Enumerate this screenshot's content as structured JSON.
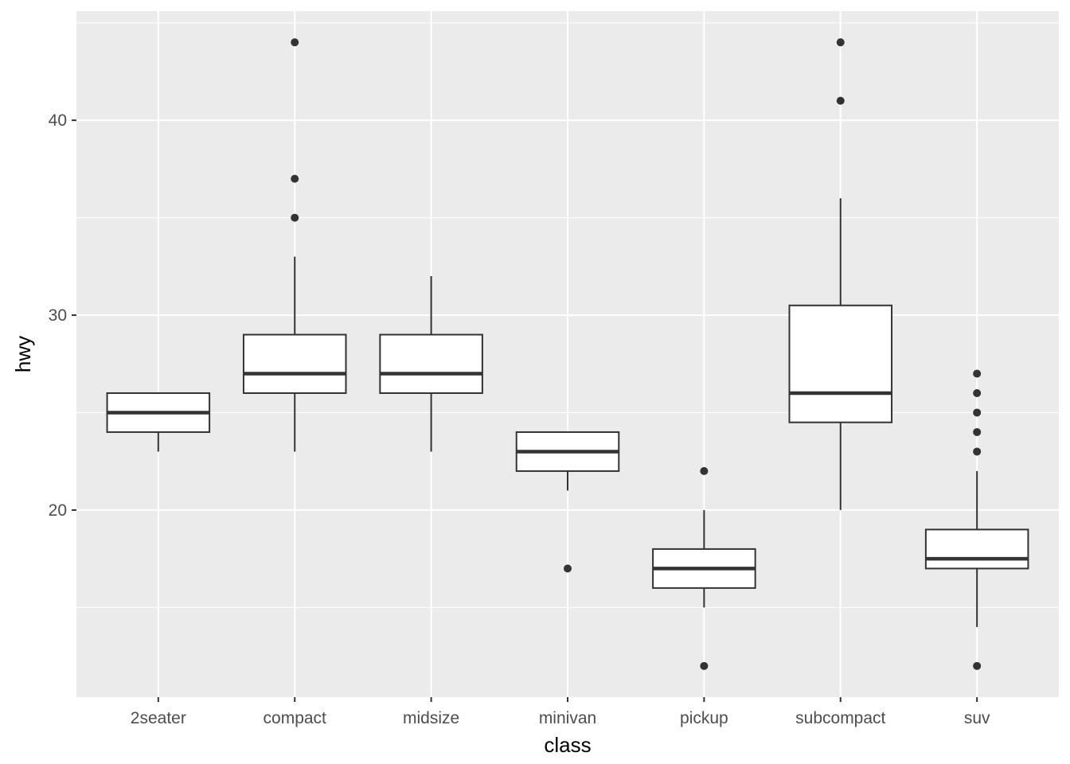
{
  "chart_data": {
    "type": "box",
    "xlabel": "class",
    "ylabel": "hwy",
    "categories": [
      "2seater",
      "compact",
      "midsize",
      "minivan",
      "pickup",
      "subcompact",
      "suv"
    ],
    "ylim": [
      10.4,
      45.6
    ],
    "yticks": [
      20,
      30,
      40
    ],
    "grid": true,
    "boxes": [
      {
        "category": "2seater",
        "lower_whisker": 23,
        "q1": 24,
        "median": 25,
        "q3": 26,
        "upper_whisker": 26,
        "outliers": []
      },
      {
        "category": "compact",
        "lower_whisker": 23,
        "q1": 26,
        "median": 27,
        "q3": 29,
        "upper_whisker": 33,
        "outliers": [
          35,
          37,
          44
        ]
      },
      {
        "category": "midsize",
        "lower_whisker": 23,
        "q1": 26,
        "median": 27,
        "q3": 29,
        "upper_whisker": 32,
        "outliers": []
      },
      {
        "category": "minivan",
        "lower_whisker": 21,
        "q1": 22,
        "median": 23,
        "q3": 24,
        "upper_whisker": 24,
        "outliers": [
          17
        ]
      },
      {
        "category": "pickup",
        "lower_whisker": 15,
        "q1": 16,
        "median": 17,
        "q3": 18,
        "upper_whisker": 20,
        "outliers": [
          12,
          22
        ]
      },
      {
        "category": "subcompact",
        "lower_whisker": 20,
        "q1": 24.5,
        "median": 26,
        "q3": 30.5,
        "upper_whisker": 36,
        "outliers": [
          41,
          44
        ]
      },
      {
        "category": "suv",
        "lower_whisker": 14,
        "q1": 17,
        "median": 17.5,
        "q3": 19,
        "upper_whisker": 22,
        "outliers": [
          12,
          23,
          24,
          25,
          26,
          27
        ]
      }
    ],
    "colors": {
      "panel": "#ebebeb",
      "grid": "#ffffff",
      "box_fill": "#ffffff",
      "box_line": "#333333",
      "outlier": "#333333"
    }
  }
}
